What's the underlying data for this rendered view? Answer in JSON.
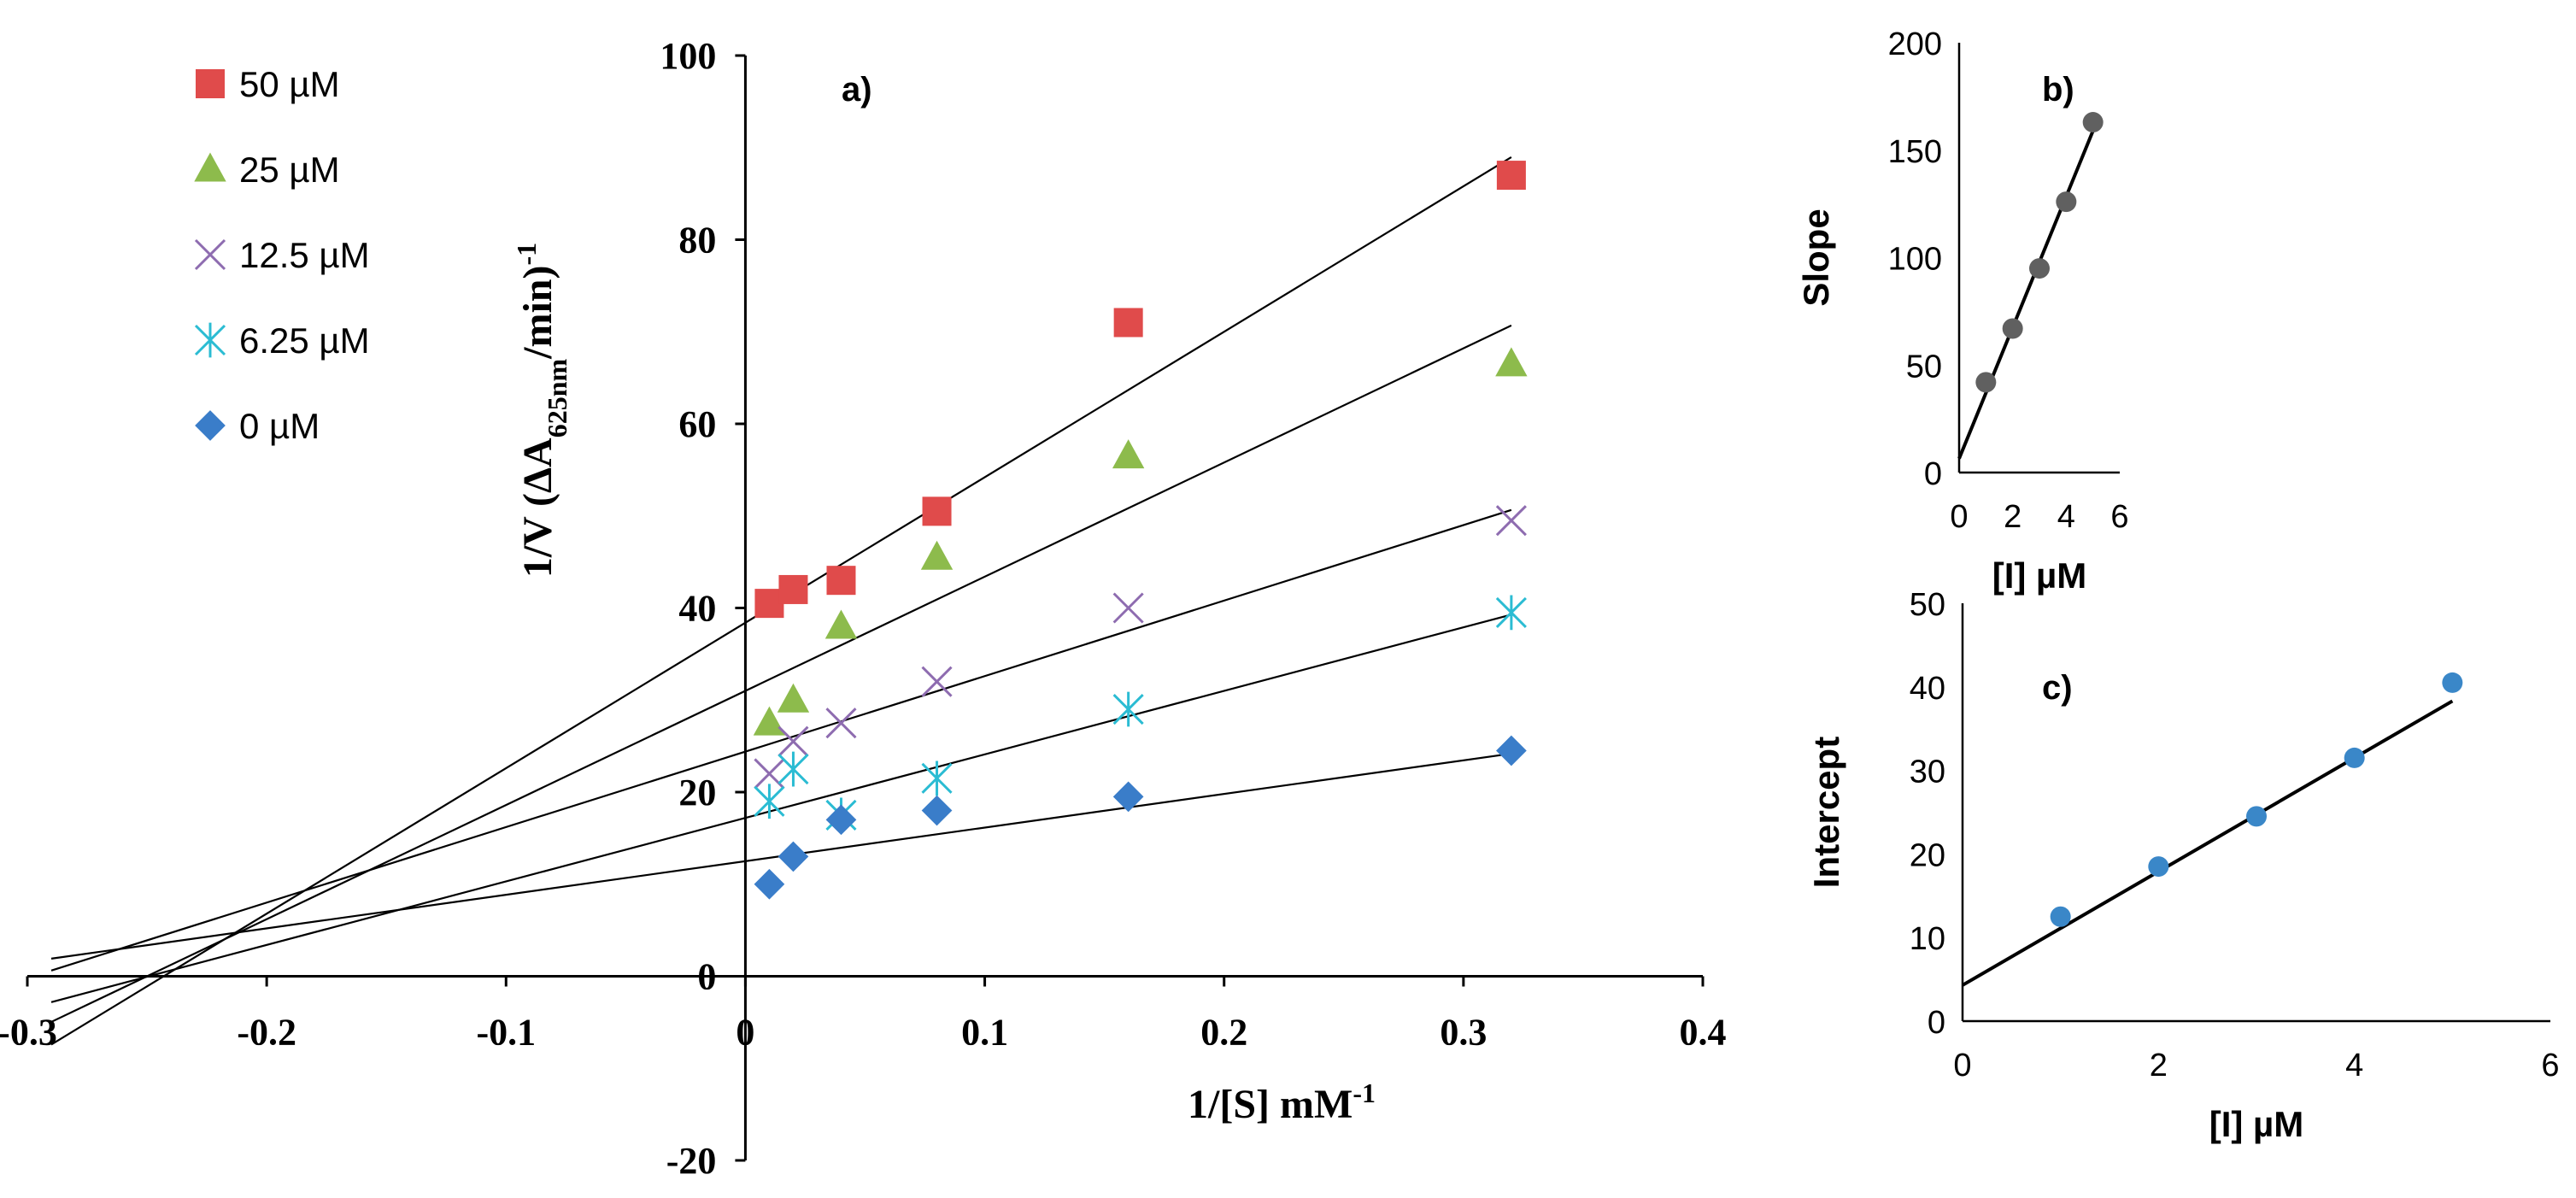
{
  "chart_data": [
    {
      "id": "a",
      "type": "scatter",
      "panel_label": "a)",
      "title": "",
      "xlabel": {
        "main": "1/[S] mM",
        "sup": "-1"
      },
      "ylabel": {
        "pre": "1/V (ΔA",
        "sub": "625nm",
        "post": "/min)",
        "sup": "-1"
      },
      "xlim": [
        -0.3,
        0.4
      ],
      "ylim": [
        -20,
        100
      ],
      "xticks": [
        -0.3,
        -0.2,
        -0.1,
        0,
        0.1,
        0.2,
        0.3,
        0.4
      ],
      "xtick_labels": [
        "-0.3",
        "-0.2",
        "-0.1",
        "0",
        "0.1",
        "0.2",
        "0.3",
        "0.4"
      ],
      "yticks": [
        -20,
        0,
        20,
        40,
        60,
        80,
        100
      ],
      "ytick_labels": [
        "-20",
        "0",
        "20",
        "40",
        "60",
        "80",
        "100"
      ],
      "legend_position": "top-left",
      "series": [
        {
          "name": "50 µM",
          "marker": "square",
          "color": "#E04B4B",
          "x": [
            0.01,
            0.02,
            0.04,
            0.08,
            0.16,
            0.32
          ],
          "y": [
            40.5,
            42,
            43,
            50.5,
            71,
            87
          ],
          "fit": {
            "slope": 158,
            "intercept": 38.4,
            "x_from": -0.29,
            "x_to": 0.32
          }
        },
        {
          "name": "25 µM",
          "marker": "triangle",
          "color": "#8DBB4C",
          "x": [
            0.01,
            0.02,
            0.04,
            0.08,
            0.16,
            0.32
          ],
          "y": [
            27.5,
            30,
            38,
            45.5,
            56.5,
            66.5
          ],
          "fit": {
            "slope": 124,
            "intercept": 31,
            "x_from": -0.29,
            "x_to": 0.32
          }
        },
        {
          "name": "12.5 µM",
          "marker": "x",
          "color": "#8E6CB0",
          "x": [
            0.01,
            0.02,
            0.04,
            0.08,
            0.16,
            0.32
          ],
          "y": [
            22,
            25.5,
            27.5,
            32,
            40,
            49.5
          ],
          "fit": {
            "slope": 82,
            "intercept": 24.4,
            "x_from": -0.29,
            "x_to": 0.32
          }
        },
        {
          "name": "6.25 µM",
          "marker": "asterisk",
          "color": "#2BBCD3",
          "x": [
            0.01,
            0.02,
            0.04,
            0.08,
            0.16,
            0.32
          ],
          "y": [
            19,
            22.5,
            17.5,
            21.5,
            29,
            39.5
          ],
          "fit": {
            "slope": 69,
            "intercept": 17.2,
            "x_from": -0.29,
            "x_to": 0.32
          }
        },
        {
          "name": "0 µM",
          "marker": "diamond",
          "color": "#3A7DC9",
          "x": [
            0.01,
            0.02,
            0.04,
            0.08,
            0.16,
            0.32
          ],
          "y": [
            10,
            13,
            17,
            18,
            19.5,
            24.5
          ],
          "fit": {
            "slope": 36.5,
            "intercept": 12.5,
            "x_from": -0.29,
            "x_to": 0.32
          }
        }
      ]
    },
    {
      "id": "b",
      "type": "scatter",
      "panel_label": "b)",
      "xlabel": "[I] µM",
      "ylabel": "Slope",
      "xlim": [
        0,
        6
      ],
      "ylim": [
        0,
        200
      ],
      "xticks": [
        0,
        2,
        4,
        6
      ],
      "xtick_labels": [
        "0",
        "2",
        "4",
        "6"
      ],
      "yticks": [
        0,
        50,
        100,
        150,
        200
      ],
      "ytick_labels": [
        "0",
        "50",
        "100",
        "150",
        "200"
      ],
      "series": [
        {
          "name": "Slope",
          "marker": "circle",
          "color": "#606060",
          "x": [
            1,
            2,
            3,
            4,
            5
          ],
          "y": [
            42,
            67,
            95,
            126,
            163
          ],
          "fit": {
            "slope": 30.5,
            "intercept": 6.5,
            "x_from": 0,
            "x_to": 5
          }
        }
      ]
    },
    {
      "id": "c",
      "type": "scatter",
      "panel_label": "c)",
      "xlabel": "[I] µM",
      "ylabel": "Intercept",
      "xlim": [
        0,
        6
      ],
      "ylim": [
        0,
        50
      ],
      "xticks": [
        0,
        2,
        4,
        6
      ],
      "xtick_labels": [
        "0",
        "2",
        "4",
        "6"
      ],
      "yticks": [
        0,
        10,
        20,
        30,
        40,
        50
      ],
      "ytick_labels": [
        "0",
        "10",
        "20",
        "30",
        "40",
        "50"
      ],
      "series": [
        {
          "name": "Intercept",
          "marker": "circle",
          "color": "#3A87C8",
          "x": [
            1,
            2,
            3,
            4,
            5
          ],
          "y": [
            12.5,
            18.5,
            24.5,
            31.5,
            40.5
          ],
          "fit": {
            "slope": 6.8,
            "intercept": 4.3,
            "x_from": 0,
            "x_to": 5
          }
        }
      ]
    }
  ]
}
